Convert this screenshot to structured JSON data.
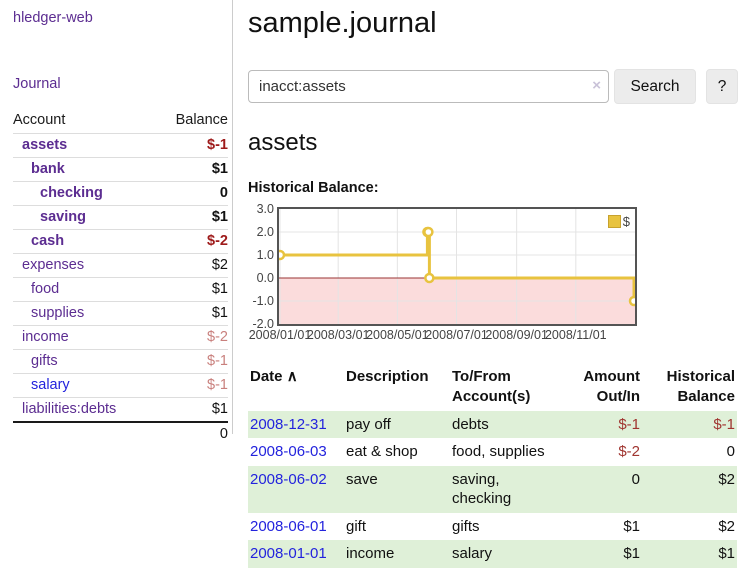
{
  "app": {
    "brand": "hledger-web"
  },
  "nav": {
    "journal": "Journal"
  },
  "colors": {
    "purple": "#5c2d91",
    "blue": "#2323dd",
    "negdark": "#9e1a1a",
    "neglight": "#c9807d",
    "negtab": "#a03530",
    "rowgreen": "#dff0d8",
    "line": "#e8c33f",
    "pink": "#fbdcdc",
    "zero": "#983333",
    "grid": "#e4e4e4",
    "btnbg": "#ececec"
  },
  "sidebar": {
    "columns": {
      "account": "Account",
      "balance": "Balance"
    },
    "accounts": [
      {
        "name": "assets",
        "balance": "$-1",
        "depth": 1,
        "bold": true,
        "balance_color": "neg-dark"
      },
      {
        "name": "bank",
        "balance": "$1",
        "depth": 2,
        "bold": true,
        "balance_color": "default"
      },
      {
        "name": "checking",
        "balance": "0",
        "depth": 3,
        "bold": true,
        "balance_color": "default"
      },
      {
        "name": "saving",
        "balance": "$1",
        "depth": 3,
        "bold": true,
        "balance_color": "default"
      },
      {
        "name": "cash",
        "balance": "$-2",
        "depth": 2,
        "bold": true,
        "balance_color": "neg-dark"
      },
      {
        "name": "expenses",
        "balance": "$2",
        "depth": 1,
        "bold": false,
        "balance_color": "default"
      },
      {
        "name": "food",
        "balance": "$1",
        "depth": 2,
        "bold": false,
        "balance_color": "default"
      },
      {
        "name": "supplies",
        "balance": "$1",
        "depth": 2,
        "bold": false,
        "balance_color": "default"
      },
      {
        "name": "income",
        "balance": "$-2",
        "depth": 1,
        "bold": false,
        "balance_color": "neg-light"
      },
      {
        "name": "gifts",
        "balance": "$-1",
        "depth": 2,
        "bold": false,
        "balance_color": "neg-light"
      },
      {
        "name": "salary",
        "balance": "$-1",
        "depth": 2,
        "bold": false,
        "balance_color": "neg-light",
        "link_color": "blue"
      },
      {
        "name": "liabilities:debts",
        "balance": "$1",
        "depth": 1,
        "bold": false,
        "balance_color": "default"
      }
    ],
    "total": "0"
  },
  "header": {
    "title": "sample.journal"
  },
  "search": {
    "value": "inacct:assets",
    "clear_icon": "×",
    "button_label": "Search",
    "help_label": "?"
  },
  "account_page": {
    "title": "assets",
    "chart_label": "Historical Balance:"
  },
  "chart_data": {
    "type": "line",
    "step": true,
    "title": "Historical Balance",
    "legend": [
      {
        "label": "$"
      }
    ],
    "legend_position": "top-right",
    "grid": true,
    "xrange": [
      "2008-01-01",
      "2008-12-31"
    ],
    "ylim": [
      -2.0,
      3.0
    ],
    "yticks": [
      3.0,
      2.0,
      1.0,
      0.0,
      -1.0,
      -2.0
    ],
    "ytick_labels": [
      "3.0",
      "2.0",
      "1.0",
      "0.0",
      "-1.0",
      "-2.0"
    ],
    "xticks": [
      {
        "date": "2008-01-01",
        "label": "2008/01/01"
      },
      {
        "date": "2008-03-01",
        "label": "2008/03/01"
      },
      {
        "date": "2008-05-01",
        "label": "2008/05/01"
      },
      {
        "date": "2008-07-01",
        "label": "2008/07/01"
      },
      {
        "date": "2008-09-01",
        "label": "2008/09/01"
      },
      {
        "date": "2008-11-01",
        "label": "2008/11/01"
      }
    ],
    "series": [
      {
        "name": "$",
        "points": [
          [
            "2008-01-01",
            1
          ],
          [
            "2008-06-01",
            2
          ],
          [
            "2008-06-02",
            2
          ],
          [
            "2008-06-03",
            0
          ],
          [
            "2008-12-31",
            -1
          ]
        ]
      }
    ],
    "negative_region_shaded": true
  },
  "register": {
    "headers": {
      "date": "Date",
      "sort_asc": "∧",
      "description": "Description",
      "accounts": "To/From Account(s)",
      "amount": "Amount Out/In",
      "balance": "Historical Balance"
    },
    "rows": [
      {
        "date": "2008-12-31",
        "description": "pay off",
        "accounts": "debts",
        "amount": "$-1",
        "balance": "$-1"
      },
      {
        "date": "2008-06-03",
        "description": "eat & shop",
        "accounts": "food, supplies",
        "amount": "$-2",
        "balance": "0"
      },
      {
        "date": "2008-06-02",
        "description": "save",
        "accounts": "saving, checking",
        "amount": "0",
        "balance": "$2"
      },
      {
        "date": "2008-06-01",
        "description": "gift",
        "accounts": "gifts",
        "amount": "$1",
        "balance": "$2"
      },
      {
        "date": "2008-01-01",
        "description": "income",
        "accounts": "salary",
        "amount": "$1",
        "balance": "$1"
      }
    ]
  }
}
